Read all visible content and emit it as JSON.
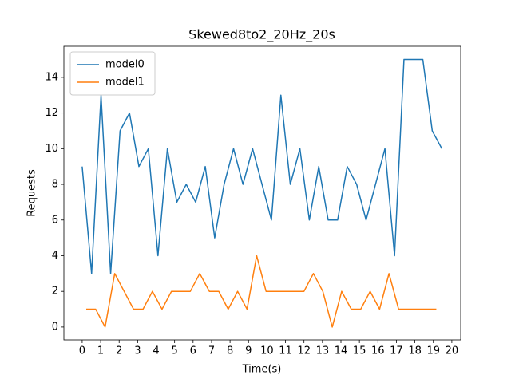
{
  "chart_data": {
    "type": "line",
    "title": "Skewed8to2_20Hz_20s",
    "xlabel": "Time(s)",
    "ylabel": "Requests",
    "legend": "upper left",
    "xlim": [
      -0.99,
      20.48
    ],
    "ylim": [
      -0.72,
      15.74
    ],
    "xticks": [
      0,
      1,
      2,
      3,
      4,
      5,
      6,
      7,
      8,
      9,
      10,
      11,
      12,
      13,
      14,
      15,
      16,
      17,
      18,
      19,
      20
    ],
    "yticks": [
      0,
      2,
      4,
      6,
      8,
      10,
      12,
      14
    ],
    "series": [
      {
        "name": "model0",
        "color": "#1f77b4",
        "x": [
          0,
          0.51,
          1.02,
          1.54,
          2.05,
          2.56,
          3.07,
          3.58,
          4.1,
          4.61,
          5.12,
          5.63,
          6.14,
          6.66,
          7.17,
          7.68,
          8.19,
          8.7,
          9.22,
          9.73,
          10.24,
          10.75,
          11.26,
          11.78,
          12.29,
          12.8,
          13.31,
          13.82,
          14.34,
          14.85,
          15.36,
          15.87,
          16.38,
          16.9,
          17.41,
          17.92,
          18.43,
          18.94,
          19.46
        ],
        "values": [
          9,
          3,
          13,
          3,
          11,
          12,
          9,
          10,
          4,
          10,
          7,
          8,
          7,
          9,
          5,
          8,
          10,
          8,
          10,
          8,
          6,
          13,
          8,
          10,
          6,
          9,
          6,
          6,
          9,
          8,
          6,
          8,
          10,
          4,
          15,
          15,
          15,
          11,
          10
        ]
      },
      {
        "name": "model1",
        "color": "#ff7f0e",
        "x": [
          0.22,
          0.73,
          1.24,
          1.76,
          2.27,
          2.78,
          3.29,
          3.8,
          4.32,
          4.83,
          5.34,
          5.85,
          6.36,
          6.88,
          7.39,
          7.9,
          8.41,
          8.92,
          9.44,
          9.95,
          10.46,
          10.97,
          11.48,
          12.0,
          12.51,
          13.02,
          13.53,
          14.04,
          14.56,
          15.07,
          15.58,
          16.09,
          16.6,
          17.12,
          17.63,
          18.14,
          18.65,
          19.16
        ],
        "values": [
          1,
          1,
          0,
          3,
          2,
          1,
          1,
          2,
          1,
          2,
          2,
          2,
          3,
          2,
          2,
          1,
          2,
          1,
          4,
          2,
          2,
          2,
          2,
          2,
          3,
          2,
          0,
          2,
          1,
          1,
          2,
          1,
          3,
          1,
          1,
          1,
          1,
          1
        ]
      }
    ]
  }
}
